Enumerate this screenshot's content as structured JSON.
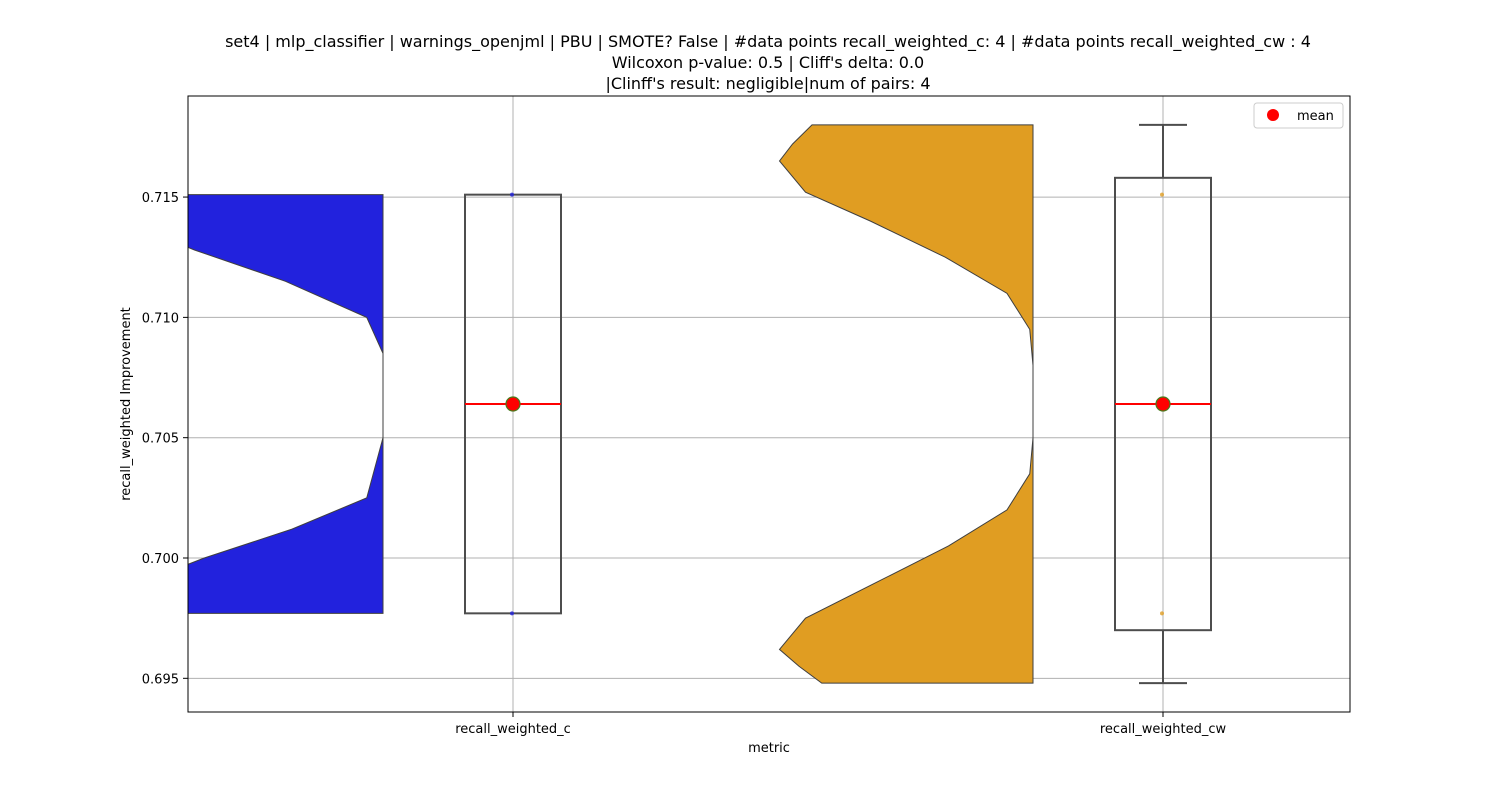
{
  "chart_data": {
    "type": "violin-box",
    "title_lines": [
      "set4 | mlp_classifier | warnings_openjml | PBU | SMOTE? False | #data points recall_weighted_c: 4 | #data points recall_weighted_cw : 4",
      "Wilcoxon p-value: 0.5 | Cliff's delta: 0.0",
      "|Clinff's result: negligible|num of pairs: 4"
    ],
    "xlabel": "metric",
    "ylabel": "recall_weighted Improvement",
    "categories": [
      "recall_weighted_c",
      "recall_weighted_cw"
    ],
    "ylim": [
      0.6936,
      0.7192
    ],
    "yticks": [
      0.695,
      0.7,
      0.705,
      0.71,
      0.715
    ],
    "ytick_labels": [
      "0.695",
      "0.700",
      "0.705",
      "0.710",
      "0.715"
    ],
    "grid": true,
    "legend": {
      "position": "top-right",
      "entries": [
        {
          "label": "mean",
          "color": "#ff0000"
        }
      ]
    },
    "series": [
      {
        "category": "recall_weighted_c",
        "violin_color": "#2222dd",
        "violin_range": [
          0.6977,
          0.7151
        ],
        "violin_profile": [
          [
            0.6977,
            0.8
          ],
          [
            0.6988,
            0.78
          ],
          [
            0.7,
            0.55
          ],
          [
            0.7012,
            0.28
          ],
          [
            0.7025,
            0.05
          ],
          [
            0.705,
            0.0
          ],
          [
            0.706,
            0.0
          ],
          [
            0.707,
            0.0
          ],
          [
            0.7085,
            0.0
          ],
          [
            0.71,
            0.05
          ],
          [
            0.7115,
            0.3
          ],
          [
            0.7128,
            0.58
          ],
          [
            0.714,
            0.8
          ],
          [
            0.7151,
            0.8
          ]
        ],
        "box": {
          "q1": 0.6977,
          "median": 0.7064,
          "q3": 0.7151,
          "whisker_low": 0.6977,
          "whisker_high": 0.7151
        },
        "mean": 0.7064,
        "points": [
          0.6977,
          0.7151
        ]
      },
      {
        "category": "recall_weighted_cw",
        "violin_color": "#e09d22",
        "violin_range": [
          0.6948,
          0.718
        ],
        "violin_profile": [
          [
            0.6948,
            0.65
          ],
          [
            0.6955,
            0.72
          ],
          [
            0.6962,
            0.78
          ],
          [
            0.6975,
            0.7
          ],
          [
            0.699,
            0.48
          ],
          [
            0.7005,
            0.26
          ],
          [
            0.702,
            0.08
          ],
          [
            0.7035,
            0.01
          ],
          [
            0.705,
            0.0
          ],
          [
            0.7065,
            0.0
          ],
          [
            0.708,
            0.0
          ],
          [
            0.7095,
            0.01
          ],
          [
            0.711,
            0.08
          ],
          [
            0.7125,
            0.27
          ],
          [
            0.714,
            0.5
          ],
          [
            0.7152,
            0.7
          ],
          [
            0.7165,
            0.78
          ],
          [
            0.7172,
            0.74
          ],
          [
            0.718,
            0.68
          ]
        ],
        "box": {
          "q1": 0.697,
          "median": 0.7064,
          "q3": 0.7158,
          "whisker_low": 0.6948,
          "whisker_high": 0.718
        },
        "mean": 0.7064,
        "points": [
          0.6977,
          0.7151
        ]
      }
    ]
  }
}
